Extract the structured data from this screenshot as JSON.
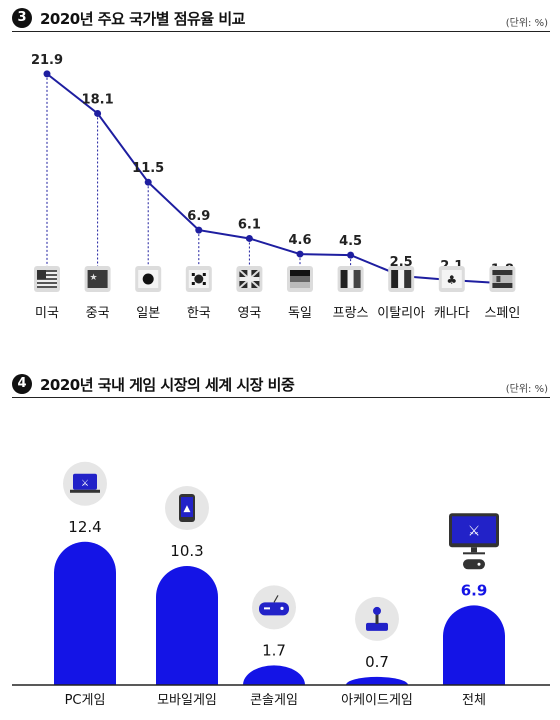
{
  "chart_data": [
    {
      "type": "line",
      "number": "3",
      "title": "2020년 주요 국가별 점유율 비교",
      "unit": "(단위: %)",
      "categories": [
        "미국",
        "중국",
        "일본",
        "한국",
        "영국",
        "독일",
        "프랑스",
        "이탈리아",
        "캐나다",
        "스페인"
      ],
      "values": [
        21.9,
        18.1,
        11.5,
        6.9,
        6.1,
        4.6,
        4.5,
        2.5,
        2.1,
        1.8
      ],
      "flags": [
        "us-flag-icon",
        "china-flag-icon",
        "japan-flag-icon",
        "korea-flag-icon",
        "uk-flag-icon",
        "germany-flag-icon",
        "france-flag-icon",
        "italy-flag-icon",
        "canada-flag-icon",
        "spain-flag-icon"
      ],
      "line_color": "#1e1ea0",
      "ylim": [
        0,
        24
      ]
    },
    {
      "type": "bar",
      "number": "4",
      "title": "2020년 국내 게임 시장의 세계 시장 비중",
      "unit": "(단위: %)",
      "categories": [
        "PC게임",
        "모바일게임",
        "콘솔게임",
        "아케이드게임",
        "전체"
      ],
      "values": [
        12.4,
        10.3,
        1.7,
        0.7,
        6.9
      ],
      "icons": [
        "laptop-icon",
        "smartphone-icon",
        "gamepad-icon",
        "joystick-icon",
        "monitor-gamepad-icon"
      ],
      "bar_color": "#1414e6",
      "highlight_value_color": "#1414e6",
      "ylim": [
        0,
        14
      ]
    }
  ]
}
